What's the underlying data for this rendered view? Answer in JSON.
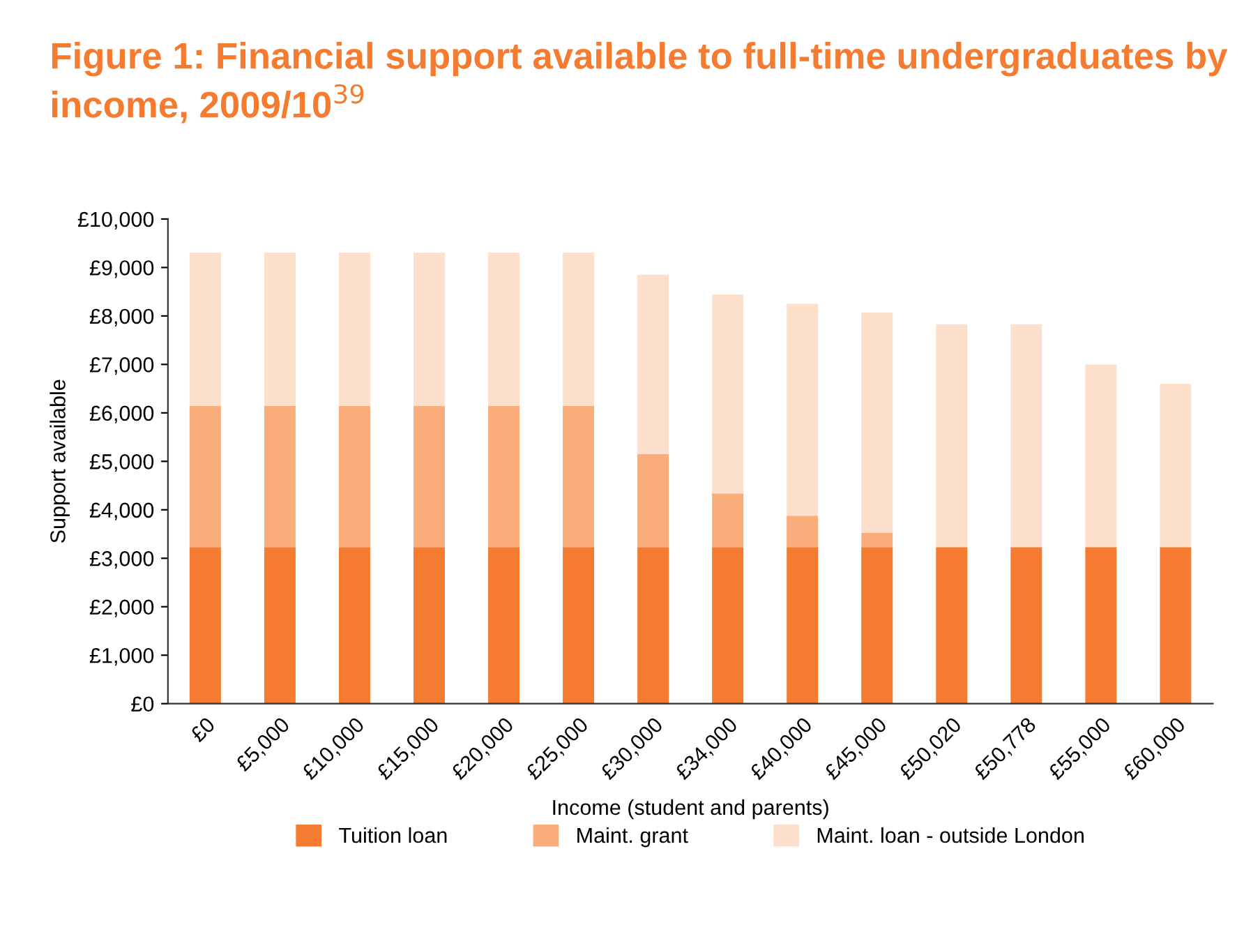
{
  "chart_data": {
    "type": "bar",
    "title": "Figure 1: Financial support available to full-time undergraduates by income, 2009/10$^{39}$",
    "xlabel": "Income (student and parents)",
    "ylabel": "Support available",
    "categories": [
      "£0",
      "£5,000",
      "£10,000",
      "£15,000",
      "£20,000",
      "£25,000",
      "£30,000",
      "£34,000",
      "£40,000",
      "£45,000",
      "£50,020",
      "£50,778",
      "£55,000",
      "£60,000"
    ],
    "stacked": true,
    "series": [
      {
        "name": "Tuition loan",
        "color": "#f47b30",
        "values": [
          3230,
          3230,
          3230,
          3230,
          3230,
          3230,
          3230,
          3230,
          3230,
          3230,
          3230,
          3230,
          3230,
          3230
        ]
      },
      {
        "name": "Maint. grant",
        "color": "#f8ad7b",
        "values": [
          2910,
          2910,
          2910,
          2910,
          2910,
          2910,
          1920,
          1110,
          650,
          300,
          0,
          0,
          0,
          0
        ]
      },
      {
        "name": "Maint. loan - outside London",
        "color": "#fde0cc",
        "values": [
          3170,
          3170,
          3170,
          3170,
          3170,
          3170,
          3700,
          4100,
          4370,
          4540,
          4600,
          4600,
          3770,
          3370
        ]
      }
    ],
    "ylim": [
      0,
      10000
    ],
    "yticks": [
      {
        "value": 0,
        "label": "£0"
      },
      {
        "value": 1000,
        "label": "£1,000"
      },
      {
        "value": 2000,
        "label": "£2,000"
      },
      {
        "value": 3000,
        "label": "£3,000"
      },
      {
        "value": 4000,
        "label": "£4,000"
      },
      {
        "value": 5000,
        "label": "£5,000"
      },
      {
        "value": 6000,
        "label": "£6,000"
      },
      {
        "value": 7000,
        "label": "£7,000"
      },
      {
        "value": 8000,
        "label": "£8,000"
      },
      {
        "value": 9000,
        "label": "£9,000"
      },
      {
        "value": 10000,
        "label": "£10,000"
      }
    ],
    "grid": false,
    "legend": "bottom"
  }
}
